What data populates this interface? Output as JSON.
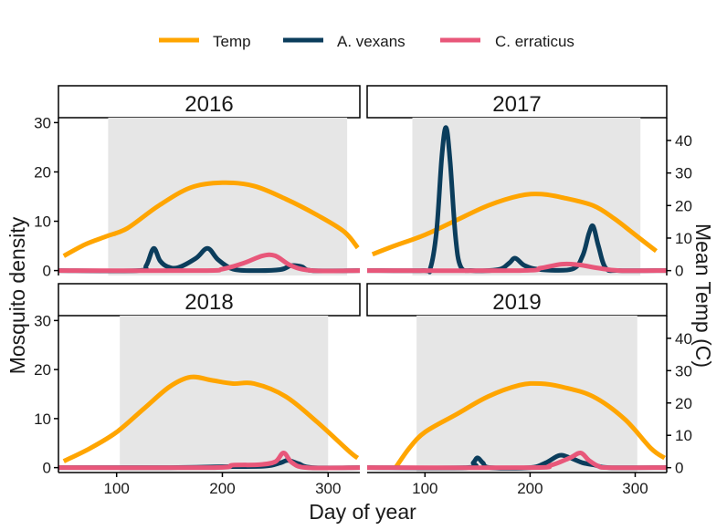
{
  "chart_data": {
    "type": "line",
    "legend": {
      "placement": "top",
      "entries": [
        {
          "label": "Temp",
          "color": "#FFA500"
        },
        {
          "label": "A. vexans",
          "color": "#0B3D5C"
        },
        {
          "label": "C. erraticus",
          "color": "#E8577A"
        }
      ]
    },
    "xlabel": "Day of year",
    "ylabel": "Mosquito density",
    "ylabel_right": "Mean Temp (C)",
    "xlim": [
      45,
      330
    ],
    "xticks": [
      "100",
      "200",
      "300"
    ],
    "ylim": [
      -1,
      31
    ],
    "yticks": [
      "0",
      "10",
      "20",
      "30"
    ],
    "ylim_right": [
      -1.5,
      47
    ],
    "yticks_right": [
      "0",
      "10",
      "20",
      "30",
      "40"
    ],
    "shade_color": "#E6E6E6",
    "panels": [
      {
        "title": "2016",
        "season_shade": [
          92,
          318
        ],
        "series": [
          {
            "name": "Temp",
            "axis": "right",
            "points": [
              [
                50,
                4.5
              ],
              [
                70,
                8
              ],
              [
                90,
                10.5
              ],
              [
                110,
                13
              ],
              [
                140,
                20
              ],
              [
                170,
                25.5
              ],
              [
                200,
                27
              ],
              [
                230,
                26
              ],
              [
                260,
                22
              ],
              [
                290,
                17
              ],
              [
                315,
                12
              ],
              [
                328,
                7
              ]
            ]
          },
          {
            "name": "A. vexans",
            "axis": "left",
            "points": [
              [
                45,
                0
              ],
              [
                120,
                0
              ],
              [
                128,
                1
              ],
              [
                135,
                4.5
              ],
              [
                141,
                2
              ],
              [
                148,
                0.8
              ],
              [
                158,
                0.6
              ],
              [
                175,
                2.5
              ],
              [
                186,
                4.5
              ],
              [
                196,
                2.2
              ],
              [
                210,
                0.3
              ],
              [
                230,
                0
              ],
              [
                255,
                0.2
              ],
              [
                265,
                1
              ],
              [
                275,
                0.8
              ],
              [
                285,
                0
              ],
              [
                330,
                0
              ]
            ]
          },
          {
            "name": "C. erraticus",
            "axis": "left",
            "points": [
              [
                45,
                0
              ],
              [
                180,
                0
              ],
              [
                200,
                0.3
              ],
              [
                220,
                1.5
              ],
              [
                238,
                3
              ],
              [
                250,
                3
              ],
              [
                265,
                1
              ],
              [
                285,
                0
              ],
              [
                330,
                0
              ]
            ]
          }
        ]
      },
      {
        "title": "2017",
        "season_shade": [
          88,
          305
        ],
        "series": [
          {
            "name": "Temp",
            "axis": "right",
            "points": [
              [
                50,
                5
              ],
              [
                70,
                7.5
              ],
              [
                100,
                11
              ],
              [
                130,
                15.5
              ],
              [
                160,
                20
              ],
              [
                190,
                23
              ],
              [
                210,
                23.5
              ],
              [
                230,
                22.5
              ],
              [
                260,
                20
              ],
              [
                280,
                16
              ],
              [
                300,
                11
              ],
              [
                320,
                6
              ]
            ]
          },
          {
            "name": "A. vexans",
            "axis": "left",
            "points": [
              [
                45,
                0
              ],
              [
                98,
                0
              ],
              [
                105,
                0.4
              ],
              [
                111,
                8
              ],
              [
                116,
                23
              ],
              [
                120,
                29
              ],
              [
                124,
                22
              ],
              [
                129,
                7
              ],
              [
                134,
                0.8
              ],
              [
                145,
                0
              ],
              [
                170,
                0.2
              ],
              [
                180,
                1.5
              ],
              [
                186,
                2.5
              ],
              [
                195,
                1
              ],
              [
                210,
                0.2
              ],
              [
                240,
                0.3
              ],
              [
                250,
                3
              ],
              [
                256,
                7.5
              ],
              [
                260,
                9
              ],
              [
                265,
                5
              ],
              [
                272,
                0.5
              ],
              [
                285,
                0
              ],
              [
                330,
                0
              ]
            ]
          },
          {
            "name": "C. erraticus",
            "axis": "left",
            "points": [
              [
                45,
                0
              ],
              [
                190,
                0
              ],
              [
                210,
                0.5
              ],
              [
                230,
                1.3
              ],
              [
                245,
                1.2
              ],
              [
                265,
                0.5
              ],
              [
                285,
                0
              ],
              [
                330,
                0
              ]
            ]
          }
        ]
      },
      {
        "title": "2018",
        "season_shade": [
          103,
          300
        ],
        "series": [
          {
            "name": "Temp",
            "axis": "right",
            "points": [
              [
                50,
                2
              ],
              [
                75,
                6
              ],
              [
                100,
                11
              ],
              [
                125,
                18
              ],
              [
                150,
                25
              ],
              [
                170,
                28
              ],
              [
                190,
                27
              ],
              [
                210,
                26
              ],
              [
                230,
                26
              ],
              [
                260,
                22
              ],
              [
                290,
                14
              ],
              [
                320,
                5
              ],
              [
                328,
                3
              ]
            ]
          },
          {
            "name": "A. vexans",
            "axis": "left",
            "points": [
              [
                45,
                0
              ],
              [
                150,
                0
              ],
              [
                200,
                0.2
              ],
              [
                240,
                0.3
              ],
              [
                255,
                1
              ],
              [
                262,
                1.5
              ],
              [
                272,
                0.8
              ],
              [
                285,
                0
              ],
              [
                330,
                0
              ]
            ]
          },
          {
            "name": "C. erraticus",
            "axis": "left",
            "points": [
              [
                45,
                0
              ],
              [
                190,
                0
              ],
              [
                210,
                0.5
              ],
              [
                235,
                0.6
              ],
              [
                250,
                1.2
              ],
              [
                258,
                3
              ],
              [
                266,
                1
              ],
              [
                280,
                0
              ],
              [
                330,
                0
              ]
            ]
          }
        ]
      },
      {
        "title": "2019",
        "season_shade": [
          92,
          302
        ],
        "series": [
          {
            "name": "Temp",
            "axis": "right",
            "points": [
              [
                72,
                0
              ],
              [
                85,
                6
              ],
              [
                100,
                11
              ],
              [
                130,
                16.5
              ],
              [
                160,
                22
              ],
              [
                190,
                25.5
              ],
              [
                210,
                26
              ],
              [
                230,
                25
              ],
              [
                260,
                22
              ],
              [
                290,
                15
              ],
              [
                315,
                6
              ],
              [
                328,
                3
              ]
            ]
          },
          {
            "name": "A. vexans",
            "axis": "left",
            "points": [
              [
                45,
                0
              ],
              [
                140,
                0
              ],
              [
                146,
                1
              ],
              [
                150,
                2
              ],
              [
                155,
                1
              ],
              [
                162,
                0
              ],
              [
                200,
                0
              ],
              [
                215,
                1
              ],
              [
                228,
                2.5
              ],
              [
                238,
                2
              ],
              [
                250,
                1
              ],
              [
                262,
                0.5
              ],
              [
                275,
                0
              ],
              [
                330,
                0
              ]
            ]
          },
          {
            "name": "C. erraticus",
            "axis": "left",
            "points": [
              [
                45,
                0
              ],
              [
                200,
                0
              ],
              [
                220,
                0.5
              ],
              [
                238,
                2
              ],
              [
                248,
                3
              ],
              [
                256,
                1.5
              ],
              [
                265,
                0.3
              ],
              [
                275,
                0
              ],
              [
                330,
                0
              ]
            ]
          }
        ]
      }
    ]
  }
}
